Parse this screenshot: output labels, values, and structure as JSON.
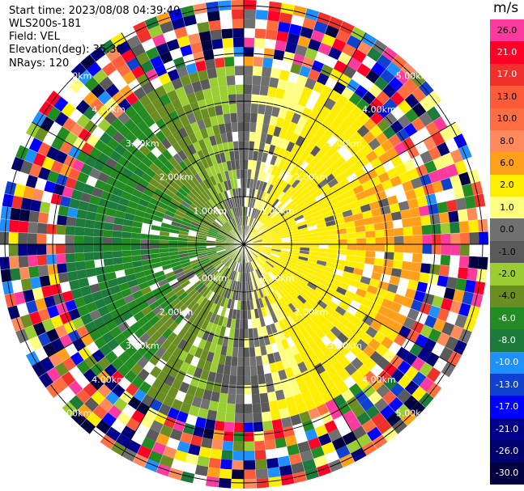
{
  "header": {
    "start_time": "Start time: 2023/08/08 04:39:40",
    "station": "WLS200s-181",
    "field": "Field: VEL",
    "elevation": "Elevation(deg): 35.30",
    "nrays": "NRays: 120"
  },
  "colorbar": {
    "unit": "m/s",
    "levels": [
      {
        "label": "26.0",
        "color": "#ff3a9e"
      },
      {
        "label": "21.0",
        "color": "#ff0026"
      },
      {
        "label": "17.0",
        "color": "#f0302a"
      },
      {
        "label": "13.0",
        "color": "#ff5a3a"
      },
      {
        "label": "10.0",
        "color": "#ff6e40"
      },
      {
        "label": "8.0",
        "color": "#ff8a5c"
      },
      {
        "label": "6.0",
        "color": "#ff9f1a"
      },
      {
        "label": "2.0",
        "color": "#ffee00"
      },
      {
        "label": "1.0",
        "color": "#ffff80"
      },
      {
        "label": "0.0",
        "color": "#707070"
      },
      {
        "label": "-1.0",
        "color": "#5a5a5a"
      },
      {
        "label": "-2.0",
        "color": "#9acd32"
      },
      {
        "label": "-4.0",
        "color": "#6b8e23"
      },
      {
        "label": "-6.0",
        "color": "#228b22"
      },
      {
        "label": "-8.0",
        "color": "#1c7a3a"
      },
      {
        "label": "-10.0",
        "color": "#1e90ff"
      },
      {
        "label": "-13.0",
        "color": "#1040d0"
      },
      {
        "label": "-17.0",
        "color": "#0000ff"
      },
      {
        "label": "-21.0",
        "color": "#00008b"
      },
      {
        "label": "-26.0",
        "color": "#000070"
      },
      {
        "label": "-30.0",
        "color": "#000040"
      }
    ]
  },
  "chart_data": {
    "type": "ppi",
    "unit": "m/s",
    "nrays": 120,
    "range_rings_km": [
      1.0,
      2.0,
      3.0,
      4.0,
      5.0
    ],
    "range_labels": [
      "1.00km",
      "2.00km",
      "3.00km",
      "4.00km",
      "5.00km"
    ],
    "structure": "radial velocity: positive (yellow/orange) east, negative (green) west, noisy outer gates"
  }
}
